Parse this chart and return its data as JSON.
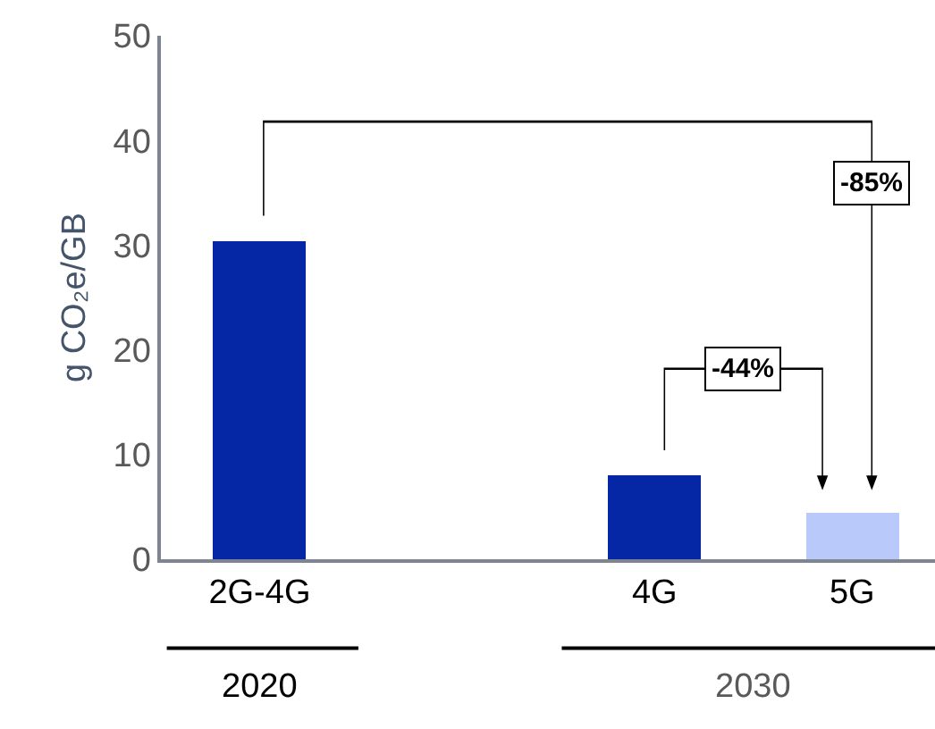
{
  "chart_data": {
    "type": "bar",
    "ylabel": "g CO₂e/GB",
    "categories": [
      "2G-4G",
      null,
      "4G",
      "5G"
    ],
    "values": [
      30.4,
      null,
      8.0,
      4.4
    ],
    "colors": [
      "#0527a6",
      "#0527a6",
      "#0527a6",
      "#b8c9fa"
    ],
    "ylim": [
      0,
      50
    ],
    "yticks": [
      0,
      10,
      20,
      30,
      40,
      50
    ],
    "annotations": [
      "-44%",
      "-85%",
      "2020",
      "2030"
    ]
  }
}
